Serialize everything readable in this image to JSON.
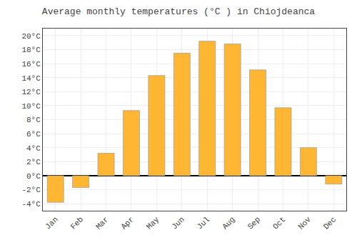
{
  "chart_data": {
    "type": "bar",
    "title": "Average monthly temperatures (°C ) in Chiojdeanca",
    "categories": [
      "Jan",
      "Feb",
      "Mar",
      "Apr",
      "May",
      "Jun",
      "Jul",
      "Aug",
      "Sep",
      "Oct",
      "Nov",
      "Dec"
    ],
    "values": [
      -3.8,
      -1.7,
      3.2,
      9.3,
      14.3,
      17.5,
      19.2,
      18.8,
      15.1,
      9.7,
      4.0,
      -1.2
    ],
    "color": "#FFB733",
    "ylim": [
      -5,
      21
    ],
    "yticks": [
      {
        "value": -4,
        "label": "-4°C"
      },
      {
        "value": -2,
        "label": "-2°C"
      },
      {
        "value": 0,
        "label": "0°C"
      },
      {
        "value": 2,
        "label": "2°C"
      },
      {
        "value": 4,
        "label": "4°C"
      },
      {
        "value": 6,
        "label": "6°C"
      },
      {
        "value": 8,
        "label": "8°C"
      },
      {
        "value": 10,
        "label": "10°C"
      },
      {
        "value": 12,
        "label": "12°C"
      },
      {
        "value": 14,
        "label": "14°C"
      },
      {
        "value": 16,
        "label": "16°C"
      },
      {
        "value": 18,
        "label": "18°C"
      },
      {
        "value": 20,
        "label": "20°C"
      }
    ],
    "grid": true
  }
}
